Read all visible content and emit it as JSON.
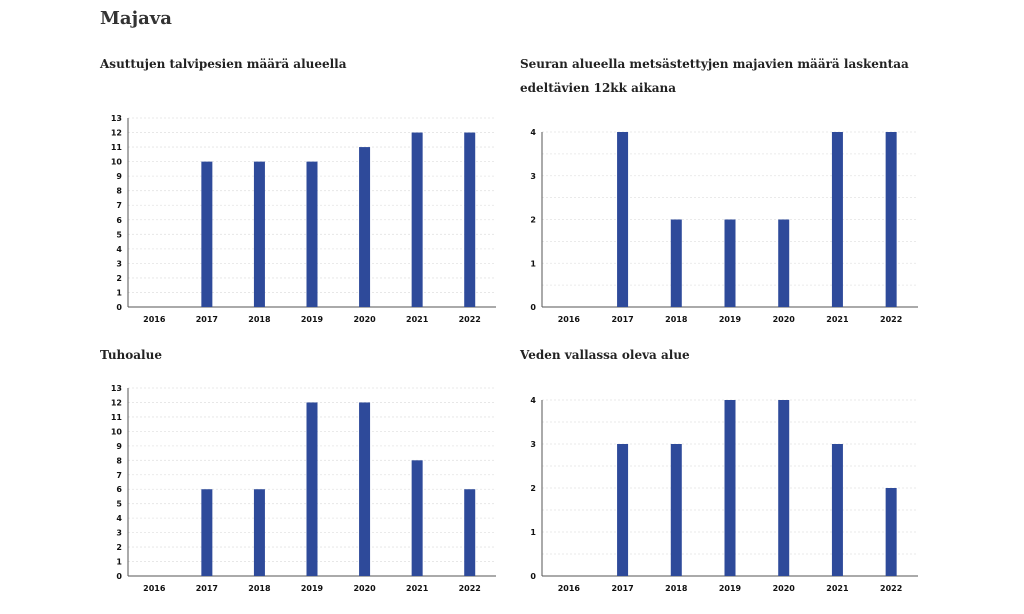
{
  "page": {
    "title": "Majava",
    "bar_color": "#2e4a9a",
    "grid_color": "#e4e4e4",
    "axis_color": "#555555"
  },
  "chart_data": [
    {
      "type": "bar",
      "title": "Asuttujen talvipesien määrä alueella",
      "categories": [
        "2016",
        "2017",
        "2018",
        "2019",
        "2020",
        "2021",
        "2022"
      ],
      "values": [
        0,
        10,
        10,
        10,
        11,
        12,
        12
      ],
      "ylim": [
        0,
        13
      ],
      "yticks": [
        0,
        1,
        2,
        3,
        4,
        5,
        6,
        7,
        8,
        9,
        10,
        11,
        12,
        13
      ],
      "grid": true
    },
    {
      "type": "bar",
      "title": "Seuran alueella metsästettyjen majavien määrä laskentaa edeltävien 12kk aikana",
      "categories": [
        "2016",
        "2017",
        "2018",
        "2019",
        "2020",
        "2021",
        "2022"
      ],
      "values": [
        0,
        4,
        2,
        2,
        2,
        4,
        4
      ],
      "ylim": [
        0,
        4
      ],
      "yticks": [
        0,
        1,
        2,
        3,
        4
      ],
      "grid": true
    },
    {
      "type": "bar",
      "title": "Tuhoalue",
      "categories": [
        "2016",
        "2017",
        "2018",
        "2019",
        "2020",
        "2021",
        "2022"
      ],
      "values": [
        0,
        6,
        6,
        12,
        12,
        8,
        6
      ],
      "ylim": [
        0,
        13
      ],
      "yticks": [
        0,
        1,
        2,
        3,
        4,
        5,
        6,
        7,
        8,
        9,
        10,
        11,
        12,
        13
      ],
      "grid": true
    },
    {
      "type": "bar",
      "title": "Veden vallassa oleva alue",
      "categories": [
        "2016",
        "2017",
        "2018",
        "2019",
        "2020",
        "2021",
        "2022"
      ],
      "values": [
        0,
        3,
        3,
        4,
        4,
        3,
        2
      ],
      "ylim": [
        0,
        4
      ],
      "yticks": [
        0,
        1,
        2,
        3,
        4
      ],
      "grid": true
    }
  ]
}
